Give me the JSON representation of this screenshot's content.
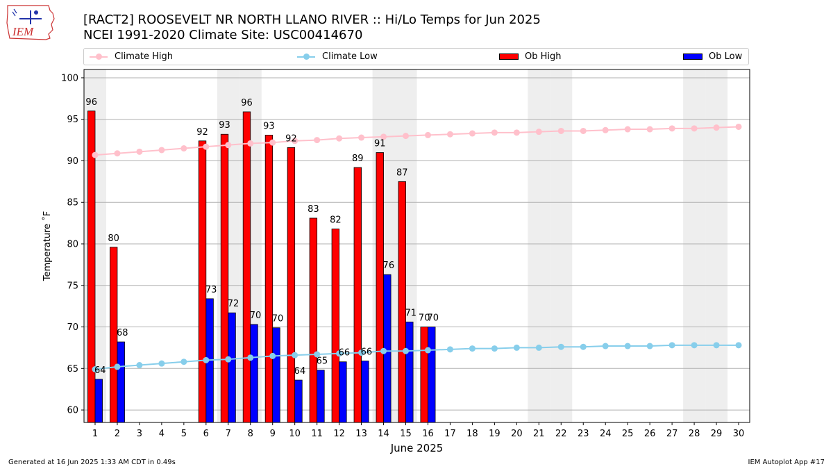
{
  "header": {
    "title_line1": "[RACT2] ROOSEVELT NR NORTH LLANO RIVER :: Hi/Lo Temps for Jun 2025",
    "title_line2": "NCEI 1991-2020 Climate Site: USC00414670",
    "logo_text": "IEM"
  },
  "legend": {
    "climate_high": "Climate High",
    "climate_low": "Climate Low",
    "ob_high": "Ob High",
    "ob_low": "Ob Low"
  },
  "footer": {
    "generated": "Generated at 16 Jun 2025 1:33 AM CDT in 0.49s",
    "app": "IEM Autoplot App #17"
  },
  "colors": {
    "climate_high": "#ffc0cb",
    "climate_low": "#87ceeb",
    "ob_high": "#ff0000",
    "ob_low": "#0000ff",
    "weekend_shade": "#eeeeee",
    "grid": "#b0b0b0"
  },
  "chart_data": {
    "type": "bar",
    "xlabel": "June 2025",
    "ylabel": "Temperature ˚F",
    "xlim": [
      0.5,
      30.5
    ],
    "ylim": [
      58.5,
      101
    ],
    "yticks": [
      60,
      65,
      70,
      75,
      80,
      85,
      90,
      95,
      100
    ],
    "grid": "horizontal",
    "legend_placement": "top",
    "days": [
      1,
      2,
      3,
      4,
      5,
      6,
      7,
      8,
      9,
      10,
      11,
      12,
      13,
      14,
      15,
      16,
      17,
      18,
      19,
      20,
      21,
      22,
      23,
      24,
      25,
      26,
      27,
      28,
      29,
      30
    ],
    "weekend_days": [
      1,
      7,
      8,
      14,
      15,
      21,
      22,
      28,
      29
    ],
    "series": [
      {
        "name": "Climate High",
        "kind": "line",
        "values": [
          90.7,
          90.9,
          91.1,
          91.3,
          91.5,
          91.7,
          91.9,
          92.1,
          92.2,
          92.4,
          92.5,
          92.7,
          92.8,
          92.9,
          93.0,
          93.1,
          93.2,
          93.3,
          93.4,
          93.4,
          93.5,
          93.6,
          93.6,
          93.7,
          93.8,
          93.8,
          93.9,
          93.9,
          94.0,
          94.1
        ]
      },
      {
        "name": "Climate Low",
        "kind": "line",
        "values": [
          64.9,
          65.2,
          65.4,
          65.6,
          65.8,
          66.0,
          66.1,
          66.3,
          66.5,
          66.6,
          66.7,
          66.8,
          66.9,
          67.1,
          67.1,
          67.2,
          67.3,
          67.4,
          67.4,
          67.5,
          67.5,
          67.6,
          67.6,
          67.7,
          67.7,
          67.7,
          67.8,
          67.8,
          67.8,
          67.8
        ]
      },
      {
        "name": "Ob High",
        "kind": "bar",
        "values": [
          96,
          79.6,
          null,
          null,
          null,
          92.4,
          93.2,
          95.9,
          93.1,
          91.6,
          83.1,
          81.8,
          89.2,
          91.0,
          87.5,
          70.0,
          null,
          null,
          null,
          null,
          null,
          null,
          null,
          null,
          null,
          null,
          null,
          null,
          null,
          null
        ],
        "labels": [
          "96",
          "80",
          "",
          "",
          "",
          "92",
          "93",
          "96",
          "93",
          "92",
          "83",
          "82",
          "89",
          "91",
          "87",
          "70",
          "",
          "",
          "",
          "",
          "",
          "",
          "",
          "",
          "",
          "",
          "",
          "",
          "",
          ""
        ]
      },
      {
        "name": "Ob Low",
        "kind": "bar",
        "values": [
          63.7,
          68.2,
          null,
          null,
          null,
          73.4,
          71.7,
          70.3,
          69.9,
          63.6,
          64.8,
          65.8,
          65.9,
          76.3,
          70.6,
          70.0,
          null,
          null,
          null,
          null,
          null,
          null,
          null,
          null,
          null,
          null,
          null,
          null,
          null,
          null
        ],
        "labels": [
          "64",
          "68",
          "",
          "",
          "",
          "73",
          "72",
          "70",
          "70",
          "64",
          "65",
          "66",
          "66",
          "76",
          "71",
          "70",
          "",
          "",
          "",
          "",
          "",
          "",
          "",
          "",
          "",
          "",
          "",
          "",
          "",
          ""
        ]
      }
    ]
  }
}
